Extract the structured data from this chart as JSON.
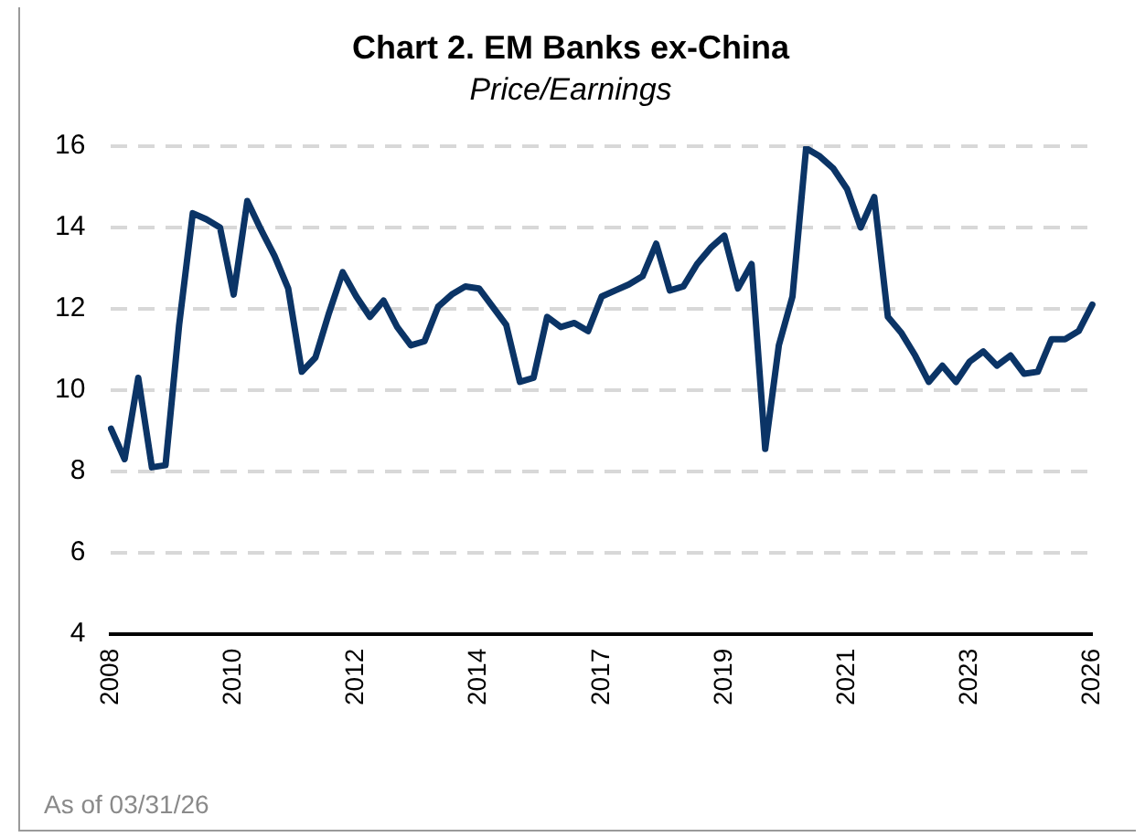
{
  "chart_data": {
    "type": "line",
    "title": "Chart 2. EM Banks ex-China",
    "subtitle": "Price/Earnings",
    "categories": [
      "2008",
      null,
      null,
      null,
      null,
      null,
      null,
      null,
      null,
      "2010",
      null,
      null,
      null,
      null,
      null,
      null,
      null,
      null,
      "2012",
      null,
      null,
      null,
      null,
      null,
      null,
      null,
      null,
      "2014",
      null,
      null,
      null,
      null,
      null,
      null,
      null,
      null,
      "2017",
      null,
      null,
      null,
      null,
      null,
      null,
      null,
      null,
      "2019",
      null,
      null,
      null,
      null,
      null,
      null,
      null,
      null,
      "2021",
      null,
      null,
      null,
      null,
      null,
      null,
      null,
      null,
      "2023",
      null,
      null,
      null,
      null,
      null,
      null,
      null,
      null,
      "2026"
    ],
    "series": [
      {
        "color": "#0b3466",
        "values": [
          9.05,
          8.3,
          10.3,
          8.1,
          8.15,
          11.6,
          14.35,
          14.2,
          14.0,
          12.35,
          14.65,
          13.95,
          13.3,
          12.5,
          10.45,
          10.8,
          11.9,
          12.9,
          12.3,
          11.8,
          12.2,
          11.55,
          11.1,
          11.2,
          12.05,
          12.35,
          12.55,
          12.5,
          12.05,
          11.6,
          10.2,
          10.3,
          11.8,
          11.55,
          11.65,
          11.45,
          12.3,
          12.45,
          12.6,
          12.8,
          13.6,
          12.45,
          12.55,
          13.1,
          13.5,
          13.8,
          12.5,
          13.1,
          8.55,
          11.1,
          12.3,
          15.95,
          15.75,
          15.45,
          14.95,
          14.0,
          14.75,
          11.8,
          11.4,
          10.85,
          10.2,
          10.6,
          10.2,
          10.7,
          10.95,
          10.6,
          10.85,
          10.4,
          10.45,
          11.25,
          11.25,
          11.45,
          12.1
        ]
      }
    ],
    "ylim": [
      4,
      16
    ],
    "yticks": [
      4,
      6,
      8,
      10,
      12,
      14,
      16
    ],
    "grid": "y",
    "legend": false,
    "marker": "none",
    "line_style": "solid",
    "annotations": [
      "As of 03/31/26"
    ]
  }
}
